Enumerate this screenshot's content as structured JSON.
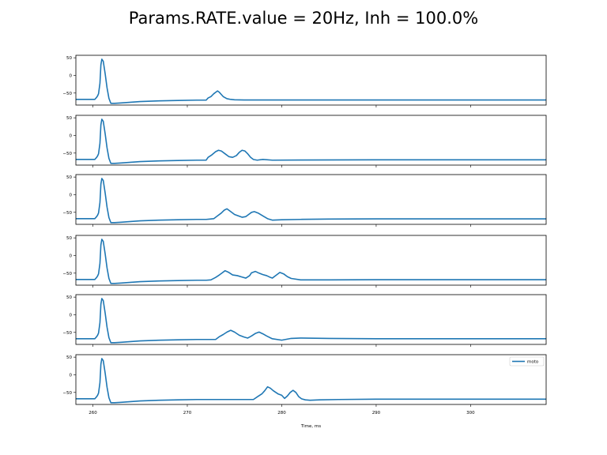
{
  "figure": {
    "title": "Params.RATE.value = 20Hz, Inh = 100.0%",
    "xlabel": "Time, ms"
  },
  "chart_data": {
    "type": "line",
    "title": "Params.RATE.value = 20Hz, Inh = 100.0%",
    "xlabel": "Time, ms",
    "ylabel": "",
    "xlim": [
      258.2,
      308
    ],
    "ylim": [
      -84,
      57
    ],
    "xticks": [
      260,
      270,
      280,
      290,
      300
    ],
    "yticks": [
      50,
      0,
      -50
    ],
    "ytick_labels": [
      "50",
      "0",
      "−50"
    ],
    "grid": false,
    "series_color": "#1f77b4",
    "legend": {
      "label": "moto",
      "placement": "upper-right",
      "panel": 6
    },
    "panels": [
      {
        "x": [
          258.2,
          260.2,
          260.4,
          260.5,
          260.6,
          260.75,
          260.85,
          260.95,
          261.1,
          261.3,
          261.5,
          261.7,
          261.9,
          262.3,
          263,
          264,
          265,
          267,
          269,
          271,
          272,
          272.2,
          272.5,
          272.8,
          273,
          273.2,
          273.4,
          273.6,
          273.8,
          274.2,
          274.6,
          275,
          276,
          280,
          290,
          300,
          308
        ],
        "y": [
          -68,
          -68,
          -62,
          -58,
          -52,
          -22,
          30,
          46,
          40,
          5,
          -35,
          -65,
          -79,
          -79,
          -78,
          -76,
          -74,
          -72,
          -71,
          -70,
          -70,
          -64,
          -60,
          -52,
          -48,
          -44,
          -48,
          -54,
          -60,
          -66,
          -68,
          -69,
          -69.5,
          -69.5,
          -69.5,
          -69.5,
          -69.5
        ]
      },
      {
        "x": [
          258.2,
          260.2,
          260.4,
          260.5,
          260.6,
          260.75,
          260.85,
          260.95,
          261.1,
          261.3,
          261.5,
          261.7,
          261.9,
          262.3,
          263,
          264,
          265,
          267,
          269,
          271,
          272,
          272.2,
          272.6,
          273,
          273.3,
          273.6,
          274,
          274.4,
          274.8,
          275.2,
          275.5,
          275.8,
          276.1,
          276.4,
          276.7,
          277,
          277.4,
          278,
          279,
          282,
          290,
          300,
          308
        ],
        "y": [
          -68,
          -68,
          -62,
          -58,
          -52,
          -22,
          30,
          46,
          40,
          5,
          -35,
          -65,
          -79,
          -79,
          -78,
          -76,
          -74,
          -72,
          -71,
          -70,
          -70,
          -62,
          -55,
          -46,
          -42,
          -44,
          -52,
          -60,
          -62,
          -57,
          -48,
          -42,
          -44,
          -52,
          -62,
          -68,
          -70,
          -68,
          -70,
          -69.5,
          -69,
          -69,
          -69
        ]
      },
      {
        "x": [
          258.2,
          260.2,
          260.4,
          260.5,
          260.6,
          260.75,
          260.85,
          260.95,
          261.1,
          261.3,
          261.5,
          261.7,
          261.9,
          262.3,
          263,
          264,
          265,
          267,
          269,
          271,
          272,
          272.4,
          272.8,
          273.2,
          273.6,
          273.9,
          274.2,
          274.6,
          275,
          275.4,
          275.8,
          276.2,
          276.5,
          276.8,
          277.1,
          277.5,
          278,
          278.5,
          279,
          280,
          282,
          285,
          290,
          300,
          308
        ],
        "y": [
          -68,
          -68,
          -62,
          -58,
          -52,
          -22,
          30,
          46,
          40,
          5,
          -35,
          -65,
          -79,
          -79,
          -78,
          -76,
          -74,
          -72,
          -71,
          -70,
          -70,
          -69,
          -68,
          -60,
          -52,
          -44,
          -40,
          -48,
          -56,
          -60,
          -64,
          -62,
          -56,
          -50,
          -48,
          -52,
          -60,
          -68,
          -72,
          -71,
          -70,
          -69,
          -68.5,
          -68.5,
          -68.5
        ]
      },
      {
        "x": [
          258.2,
          260.2,
          260.4,
          260.5,
          260.6,
          260.75,
          260.85,
          260.95,
          261.1,
          261.3,
          261.5,
          261.7,
          261.9,
          262.3,
          263,
          264,
          265,
          267,
          269,
          271,
          272,
          272.5,
          273,
          273.4,
          273.7,
          274,
          274.4,
          274.8,
          275.3,
          275.8,
          276.2,
          276.6,
          276.8,
          277.2,
          277.6,
          278,
          278.4,
          278.8,
          279,
          279.4,
          279.8,
          280.2,
          280.6,
          281,
          282,
          285,
          290,
          300,
          308
        ],
        "y": [
          -68,
          -68,
          -62,
          -58,
          -52,
          -22,
          30,
          46,
          40,
          5,
          -35,
          -65,
          -79,
          -79,
          -78,
          -76,
          -74,
          -72,
          -71,
          -70,
          -70,
          -69,
          -62,
          -55,
          -49,
          -43,
          -48,
          -55,
          -57,
          -61,
          -64,
          -57,
          -49,
          -45,
          -50,
          -54,
          -57,
          -62,
          -64,
          -56,
          -48,
          -52,
          -60,
          -65,
          -69,
          -69,
          -68.5,
          -68.5,
          -68.5
        ]
      },
      {
        "x": [
          258.2,
          260.2,
          260.4,
          260.5,
          260.6,
          260.75,
          260.85,
          260.95,
          261.1,
          261.3,
          261.5,
          261.7,
          261.9,
          262.3,
          263,
          264,
          265,
          267,
          269,
          271,
          272,
          272.5,
          273,
          273.4,
          273.8,
          274.2,
          274.6,
          275,
          275.5,
          276,
          276.4,
          276.8,
          277.2,
          277.6,
          278,
          278.4,
          279,
          280,
          281,
          282,
          285,
          290,
          300,
          308
        ],
        "y": [
          -68,
          -68,
          -62,
          -58,
          -52,
          -22,
          30,
          46,
          40,
          5,
          -35,
          -65,
          -79,
          -79,
          -78,
          -76,
          -74,
          -72,
          -71,
          -70,
          -70,
          -70,
          -70,
          -62,
          -56,
          -49,
          -44,
          -49,
          -58,
          -63,
          -66,
          -60,
          -53,
          -49,
          -54,
          -60,
          -68,
          -72,
          -67,
          -66,
          -67,
          -68,
          -68,
          -68
        ]
      },
      {
        "x": [
          258.2,
          260.2,
          260.4,
          260.5,
          260.6,
          260.75,
          260.85,
          260.95,
          261.1,
          261.3,
          261.5,
          261.7,
          261.9,
          262.3,
          263,
          264,
          265,
          267,
          269,
          271,
          274,
          276,
          277,
          277.5,
          277.9,
          278.2,
          278.5,
          278.8,
          279.1,
          279.6,
          280,
          280.3,
          280.6,
          280.9,
          281.2,
          281.5,
          281.8,
          282.1,
          282.5,
          283,
          284,
          286,
          290,
          300,
          308
        ],
        "y": [
          -68,
          -68,
          -62,
          -58,
          -52,
          -22,
          30,
          46,
          40,
          5,
          -35,
          -65,
          -79,
          -79,
          -78,
          -76,
          -74,
          -72,
          -71,
          -70,
          -70,
          -70,
          -70,
          -61,
          -54,
          -45,
          -34,
          -38,
          -45,
          -54,
          -58,
          -67,
          -60,
          -50,
          -44,
          -50,
          -62,
          -68,
          -71,
          -72,
          -71,
          -70,
          -69,
          -69,
          -69
        ]
      }
    ]
  }
}
